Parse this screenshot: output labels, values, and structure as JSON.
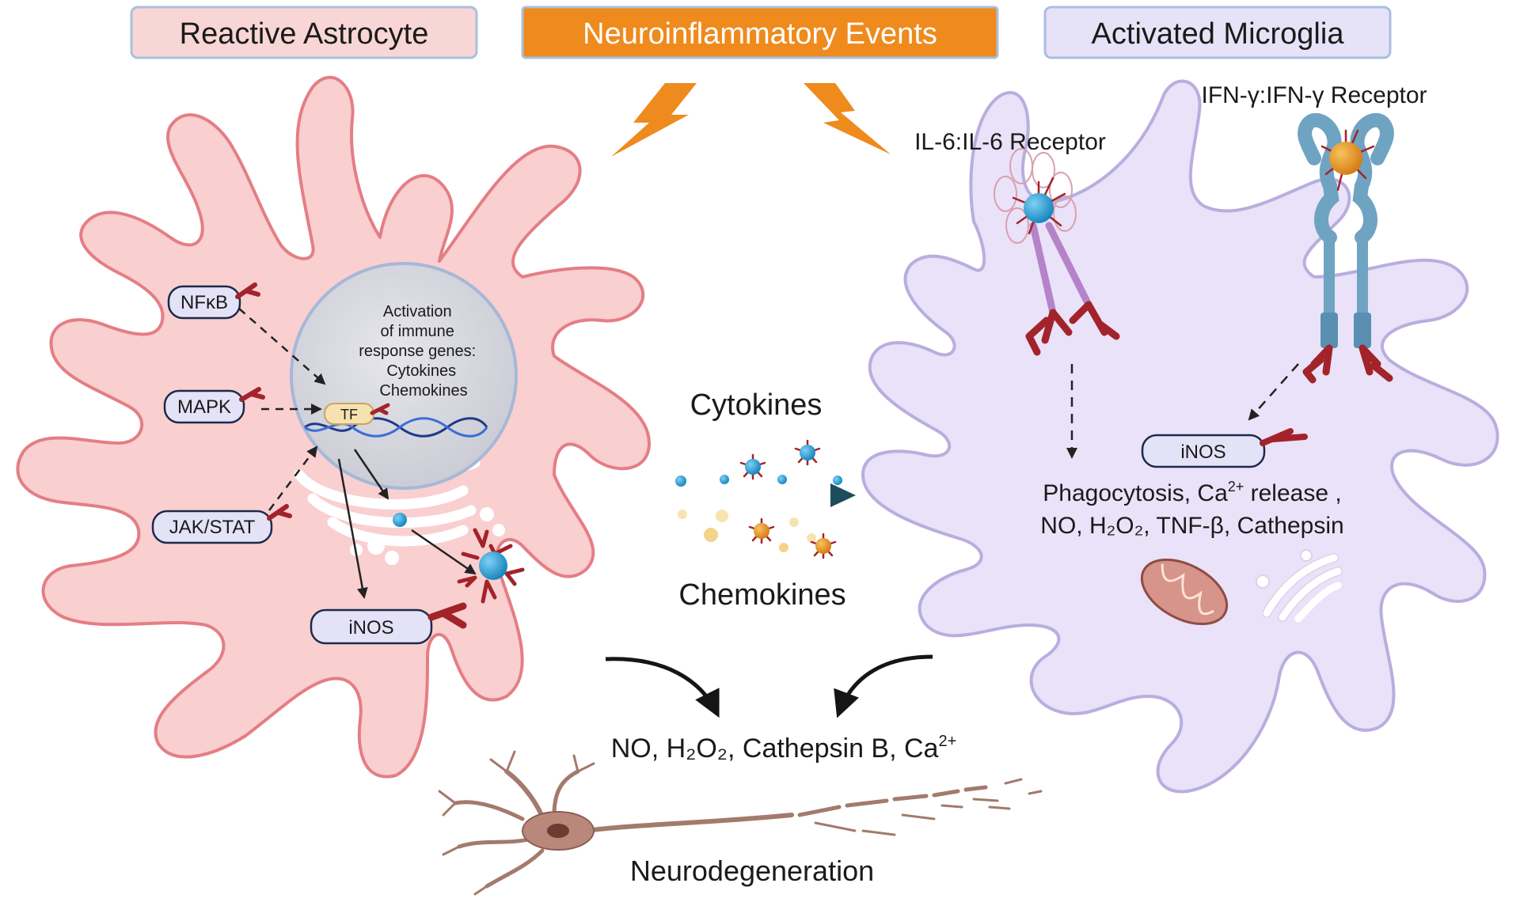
{
  "headers": {
    "astrocyte": "Reactive Astrocyte",
    "events": "Neuroinflammatory Events",
    "microglia": "Activated Microglia"
  },
  "astrocyte": {
    "pathways": [
      "NFκB",
      "MAPK",
      "JAK/STAT"
    ],
    "nucleus_text": [
      "Activation",
      "of immune",
      "response genes:",
      "Cytokines",
      "Chemokines"
    ],
    "tf_label": "TF",
    "inos_label": "iNOS"
  },
  "middle": {
    "cytokines_label": "Cytokines",
    "chemokines_label": "Chemokines"
  },
  "microglia": {
    "il6_label": "IL-6:IL-6 Receptor",
    "ifn_label": "IFN-γ:IFN-γ Receptor",
    "inos_label": "iNOS",
    "effects_line1": "Phagocytosis, Ca",
    "effects_line1_sup": "2+",
    "effects_line1_end": " release ,",
    "effects_line2": "NO, H₂O₂, TNF-β, Cathepsin"
  },
  "bottom": {
    "products": "NO, H₂O₂, Cathepsin B, Ca",
    "products_sup": "2+",
    "neurodegeneration": "Neurodegeneration"
  },
  "colors": {
    "astrocyte_fill": "#f9cfd0",
    "astrocyte_stroke": "#e47e84",
    "microglia_fill": "#e9e2f8",
    "microglia_stroke": "#b8aede",
    "header_orange": "#ef8a1d",
    "pill_fill": "#e4e2f7",
    "receptor_red": "#a3232a",
    "cytokine_blue": "#1b95d0",
    "chemokine_orange": "#e39320",
    "neuron_brown": "#a37a6c"
  }
}
